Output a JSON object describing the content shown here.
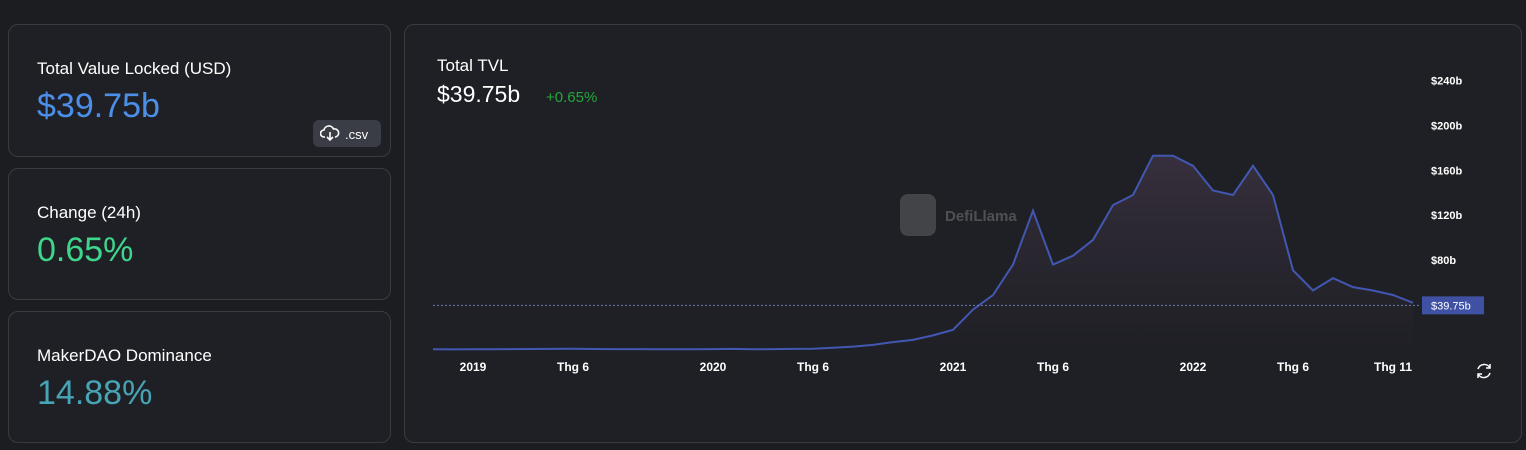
{
  "cards": [
    {
      "label": "Total Value Locked (USD)",
      "value": "$39.75b"
    },
    {
      "label": "Change (24h)",
      "value": "0.65%"
    },
    {
      "label": "MakerDAO Dominance",
      "value": "14.88%"
    }
  ],
  "csv_button": ".csv",
  "chart_data": {
    "type": "area",
    "title": "Total TVL",
    "headline": "$39.75b",
    "change": "+0.65%",
    "watermark": "DefiLlama",
    "x": [
      "2018-11",
      "2018-12",
      "2019-01",
      "2019-02",
      "2019-03",
      "2019-04",
      "2019-05",
      "2019-06",
      "2019-07",
      "2019-08",
      "2019-09",
      "2019-10",
      "2019-11",
      "2019-12",
      "2020-01",
      "2020-02",
      "2020-03",
      "2020-04",
      "2020-05",
      "2020-06",
      "2020-07",
      "2020-08",
      "2020-09",
      "2020-10",
      "2020-11",
      "2020-12",
      "2021-01",
      "2021-02",
      "2021-03",
      "2021-04",
      "2021-05",
      "2021-06",
      "2021-07",
      "2021-08",
      "2021-09",
      "2021-10",
      "2021-11",
      "2021-12",
      "2022-01",
      "2022-02",
      "2022-03",
      "2022-04",
      "2022-05",
      "2022-06",
      "2022-07",
      "2022-08",
      "2022-09",
      "2022-10",
      "2022-11",
      "2022-12"
    ],
    "values": [
      0.7,
      0.5,
      0.6,
      0.7,
      0.8,
      0.9,
      1,
      1.1,
      0.9,
      0.8,
      0.8,
      0.7,
      0.7,
      0.7,
      0.8,
      1,
      0.6,
      0.8,
      1,
      1.1,
      2,
      3,
      4.5,
      7,
      9,
      13,
      18,
      36,
      49,
      76,
      124,
      76,
      84,
      98,
      129,
      138,
      173,
      173,
      164,
      142,
      138,
      164,
      138,
      71,
      53,
      64,
      56,
      53,
      49,
      42
    ],
    "color": "#4257b2",
    "xlim": [
      "2018-11",
      "2022-12"
    ],
    "xticks": [
      {
        "value": "2019-01",
        "label": "2019"
      },
      {
        "value": "2019-06",
        "label": "Thg 6"
      },
      {
        "value": "2020-01",
        "label": "2020"
      },
      {
        "value": "2020-06",
        "label": "Thg 6"
      },
      {
        "value": "2021-01",
        "label": "2021"
      },
      {
        "value": "2021-06",
        "label": "Thg 6"
      },
      {
        "value": "2022-01",
        "label": "2022"
      },
      {
        "value": "2022-06",
        "label": "Thg 6"
      },
      {
        "value": "2022-11",
        "label": "Thg 11"
      }
    ],
    "ylim": [
      0,
      260
    ],
    "yticks": [
      {
        "value": 80,
        "label": "$80b"
      },
      {
        "value": 120,
        "label": "$120b"
      },
      {
        "value": 160,
        "label": "$160b"
      },
      {
        "value": 200,
        "label": "$200b"
      },
      {
        "value": 240,
        "label": "$240b"
      }
    ],
    "current": {
      "value": 39.75,
      "label": "$39.75b"
    }
  }
}
